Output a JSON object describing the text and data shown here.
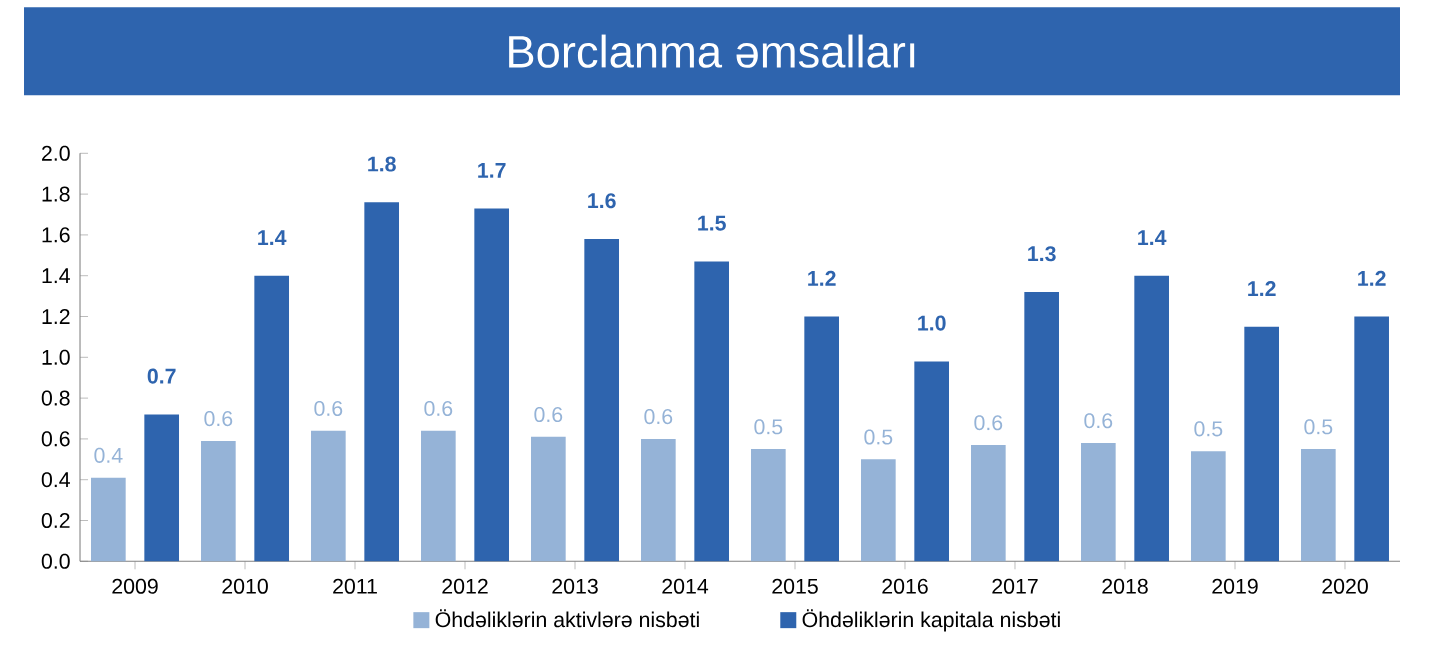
{
  "chart_data": {
    "type": "bar",
    "title": "Borclanma əmsalları",
    "categories": [
      "2009",
      "2010",
      "2011",
      "2012",
      "2013",
      "2014",
      "2015",
      "2016",
      "2017",
      "2018",
      "2019",
      "2020"
    ],
    "series": [
      {
        "name": "Öhdəliklərin aktivlərə nisbəti",
        "color": "#95b3d7",
        "values": [
          0.41,
          0.59,
          0.64,
          0.64,
          0.61,
          0.6,
          0.55,
          0.5,
          0.57,
          0.58,
          0.54,
          0.55
        ],
        "value_labels": [
          "0.4",
          "0.6",
          "0.6",
          "0.6",
          "0.6",
          "0.6",
          "0.5",
          "0.5",
          "0.6",
          "0.6",
          "0.5",
          "0.5"
        ]
      },
      {
        "name": "Öhdəliklərin kapitala nisbəti",
        "color": "#2e64ae",
        "values": [
          0.72,
          1.4,
          1.76,
          1.73,
          1.58,
          1.47,
          1.2,
          0.98,
          1.32,
          1.4,
          1.15,
          1.2
        ],
        "value_labels": [
          "0.7",
          "1.4",
          "1.8",
          "1.7",
          "1.6",
          "1.5",
          "1.2",
          "1.0",
          "1.3",
          "1.4",
          "1.2",
          "1.2"
        ]
      }
    ],
    "ylim": [
      0,
      2
    ],
    "yticks": [
      {
        "value": 0,
        "label": "0.0"
      },
      {
        "value": 0.2,
        "label": "0.2"
      },
      {
        "value": 0.4,
        "label": "0.4"
      },
      {
        "value": 0.6,
        "label": "0.6"
      },
      {
        "value": 0.8,
        "label": "0.8"
      },
      {
        "value": 1,
        "label": "1.0"
      },
      {
        "value": 1.2,
        "label": "1.2"
      },
      {
        "value": 1.4,
        "label": "1.4"
      },
      {
        "value": 1.6,
        "label": "1.6"
      },
      {
        "value": 1.8,
        "label": "1.8"
      },
      {
        "value": 2,
        "label": "2.0"
      }
    ],
    "grid": false,
    "legend": "bottom"
  }
}
